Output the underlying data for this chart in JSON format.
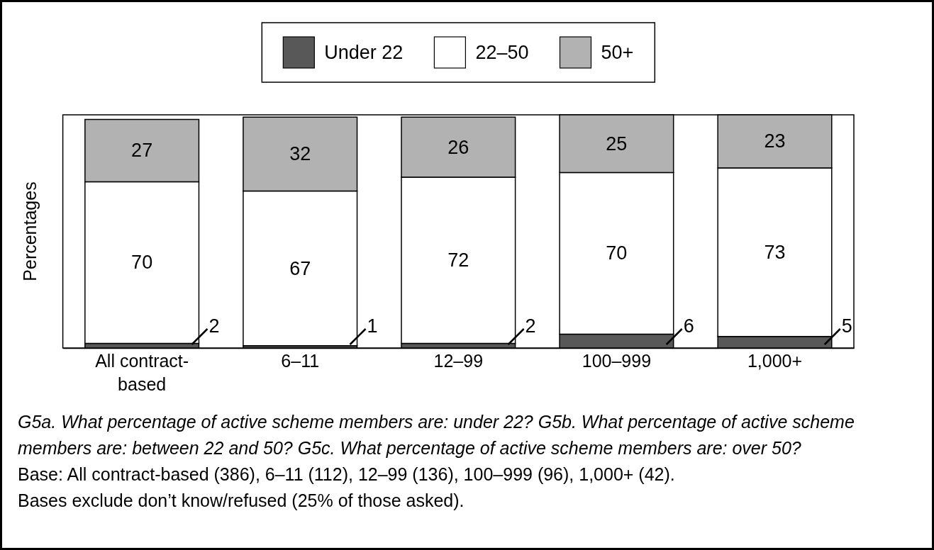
{
  "chart_data": {
    "type": "bar",
    "stacked": true,
    "categories": [
      "All contract-based",
      "6–11",
      "12–99",
      "100–999",
      "1,000+"
    ],
    "series": [
      {
        "name": "Under 22",
        "color": "#585858",
        "values": [
          2,
          1,
          2,
          6,
          5
        ]
      },
      {
        "name": "22–50",
        "color": "#ffffff",
        "values": [
          70,
          67,
          72,
          70,
          73
        ]
      },
      {
        "name": "50+",
        "color": "#b2b2b2",
        "values": [
          27,
          32,
          26,
          25,
          23
        ]
      }
    ],
    "ylabel": "Percentages",
    "data_labels": true,
    "legend": "top",
    "tick_labels": "x",
    "annotations": [
      "G5a. What percentage of active scheme members are: under 22? G5b. What percentage of active scheme members are: between 22 and 50? G5c. What percentage of active scheme members are: over 50?",
      "Base: All contract-based (386), 6–11 (112), 12–99 (136), 100–999 (96), 1,000+ (42).",
      "Bases exclude don’t know/refused (25% of those asked)."
    ]
  }
}
